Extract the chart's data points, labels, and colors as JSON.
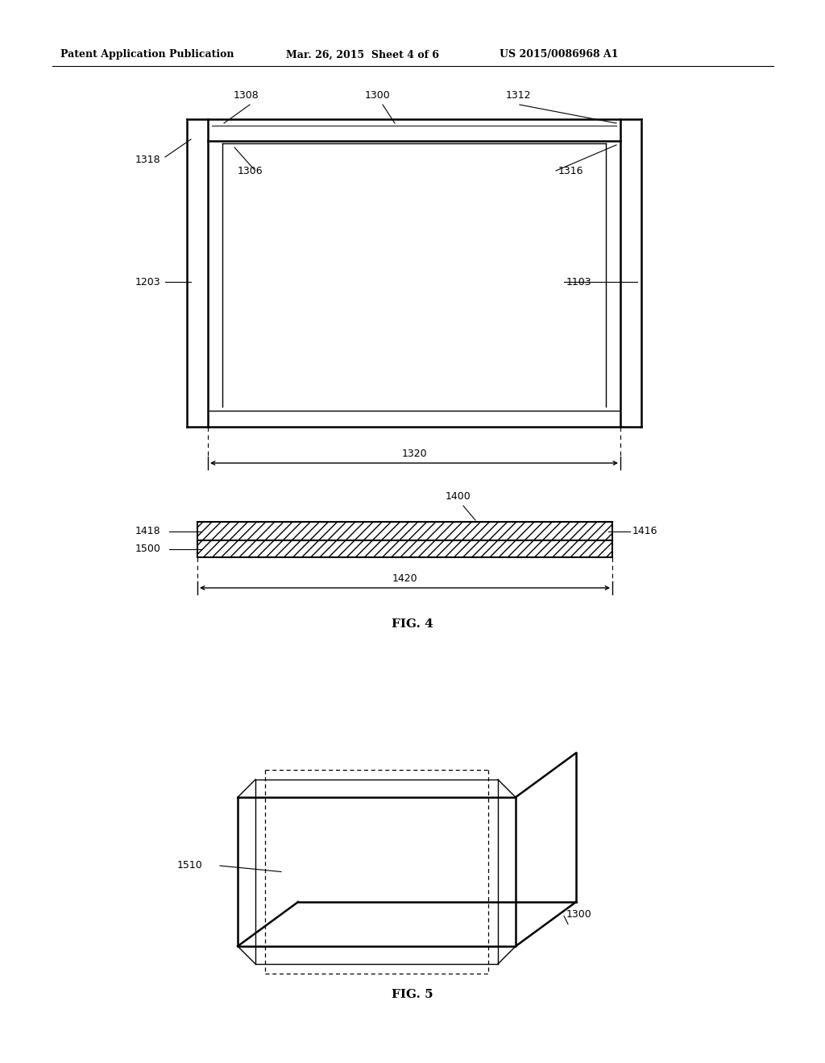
{
  "bg_color": "#ffffff",
  "text_color": "#000000",
  "header_left": "Patent Application Publication",
  "header_mid": "Mar. 26, 2015  Sheet 4 of 6",
  "header_right": "US 2015/0086968 A1",
  "fig4_label": "FIG. 4",
  "fig5_label": "FIG. 5",
  "line_color": "#000000",
  "lw_main": 1.8,
  "lw_thin": 1.0,
  "fs_label": 9.0,
  "fs_fig": 11.0
}
